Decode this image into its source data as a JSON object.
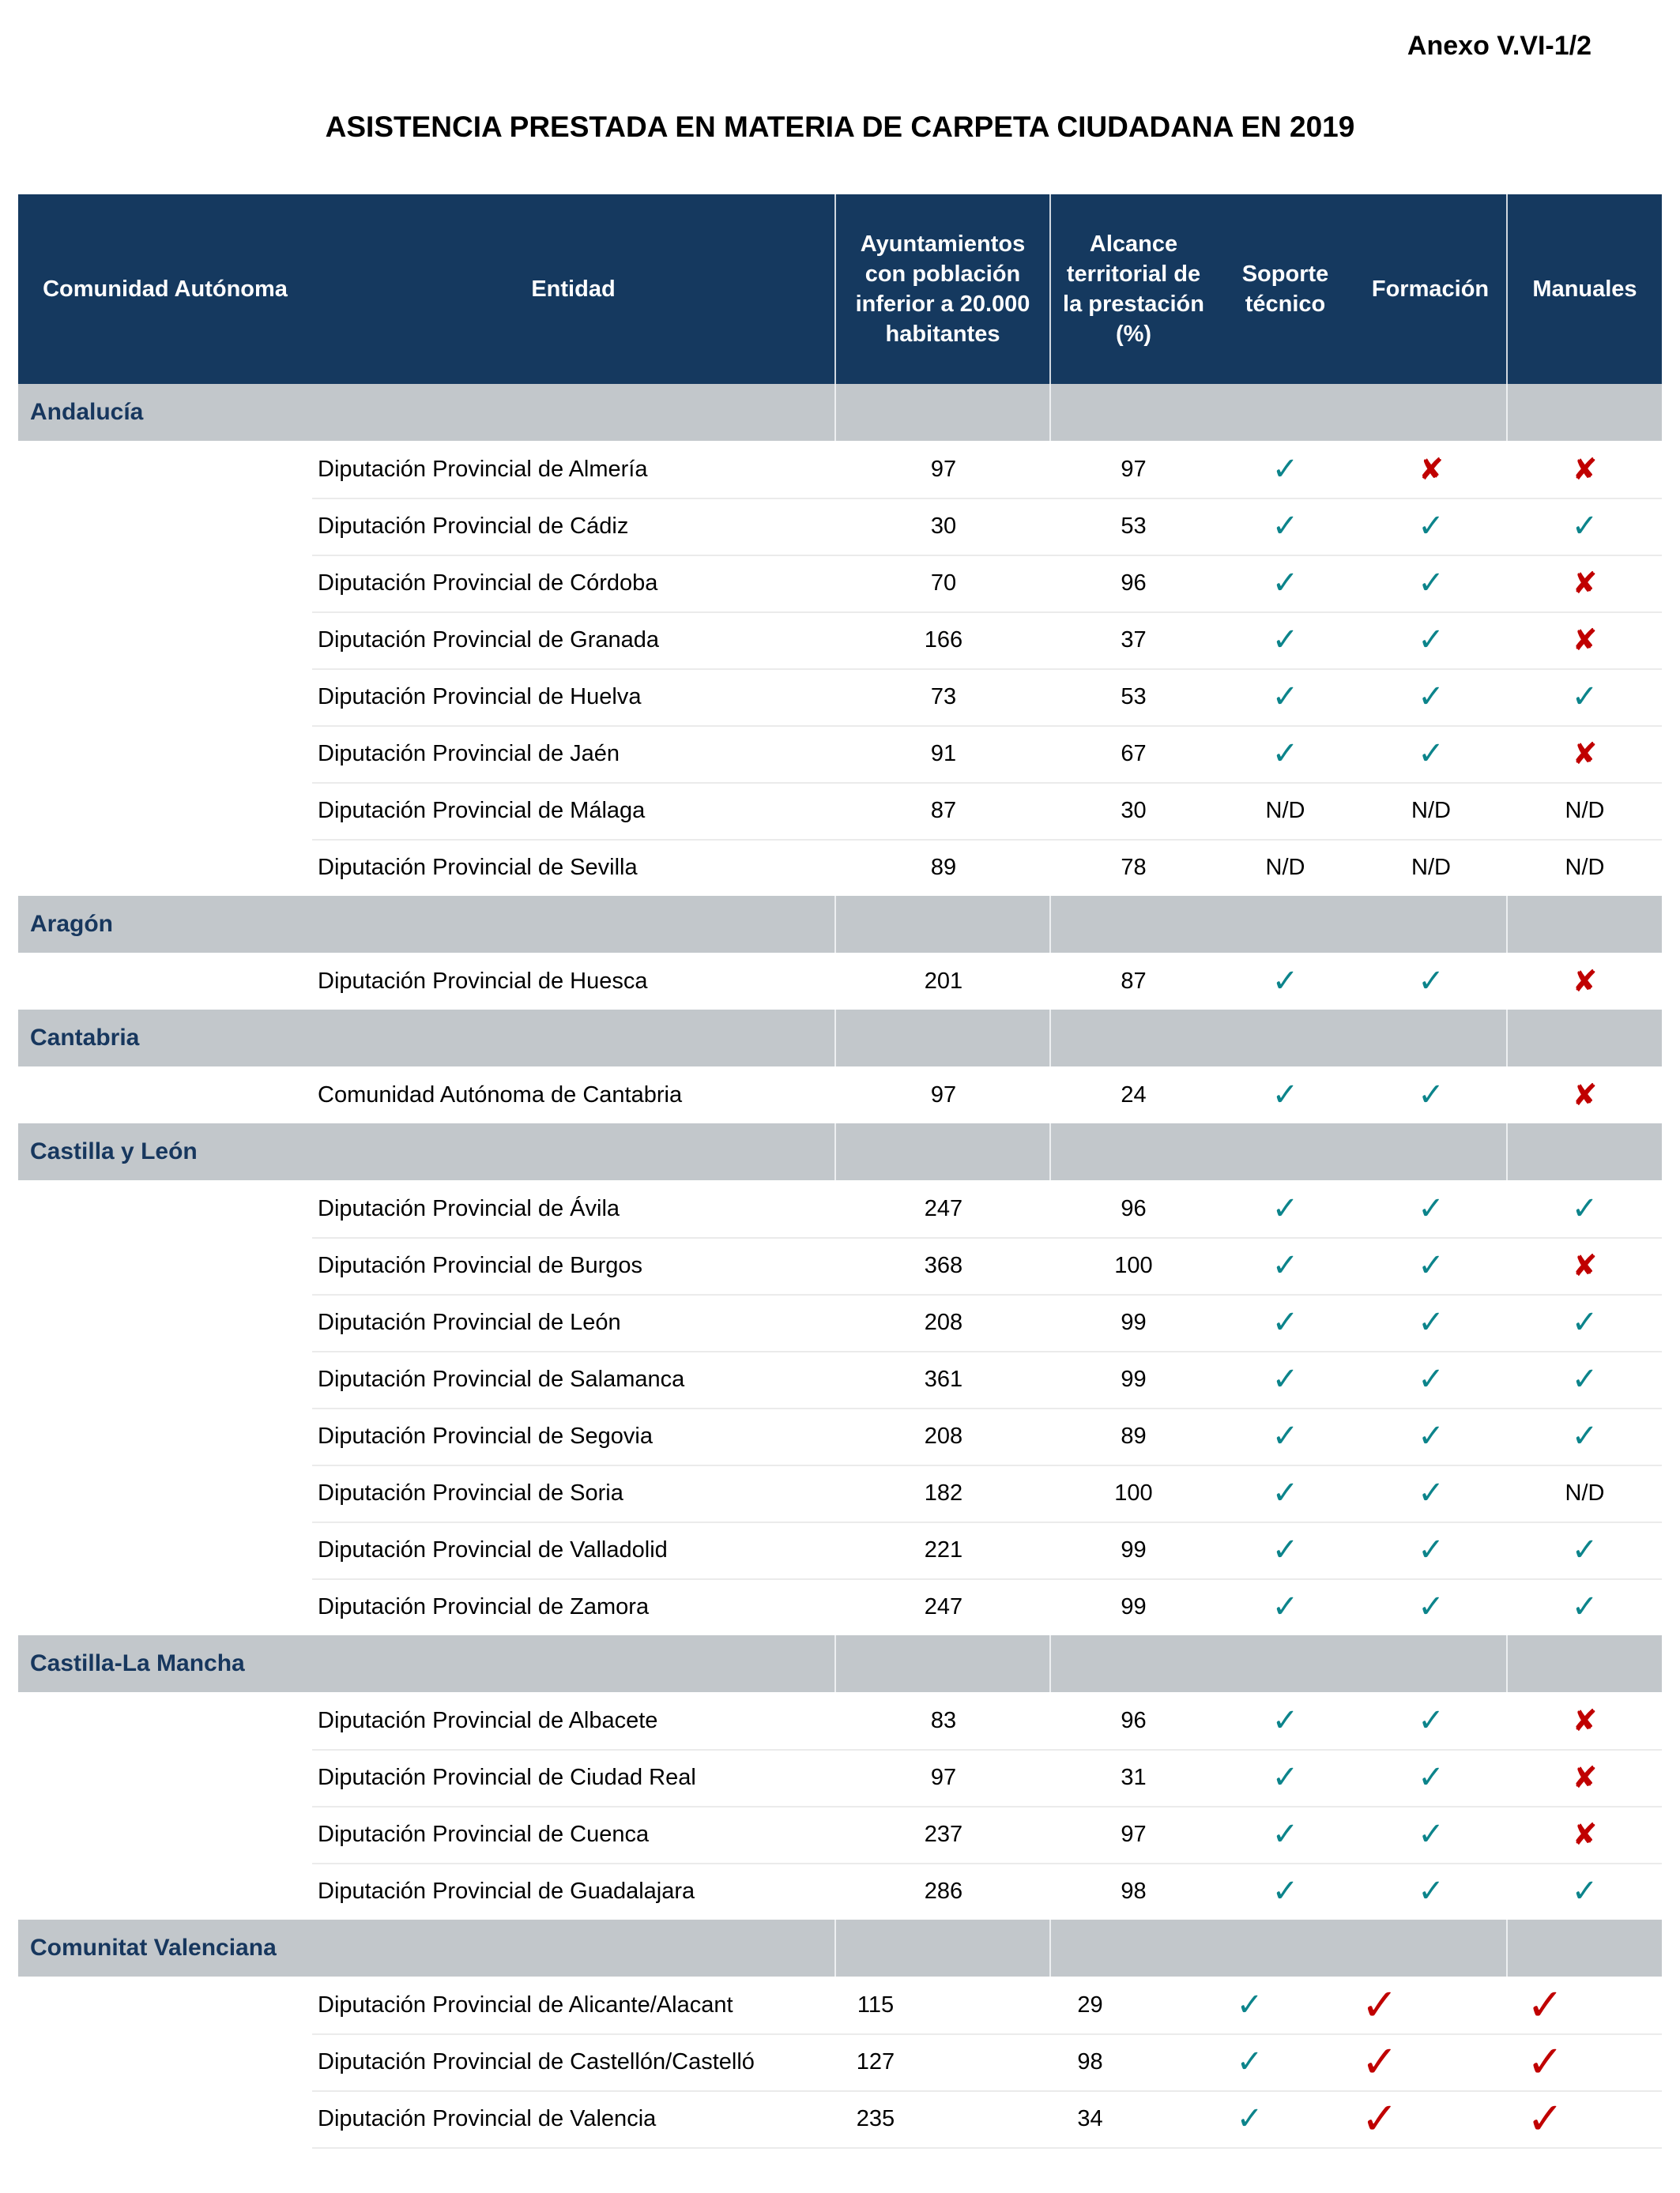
{
  "page": {
    "annex_label": "Anexo V.VI-1/2",
    "title": "ASISTENCIA PRESTADA EN MATERIA DE CARPETA CIUDADANA EN 2019"
  },
  "colors": {
    "header_bg": "#15395F",
    "header_text": "#FFFFFF",
    "band_bg": "#C2C7CB",
    "band_text": "#17375E",
    "check": "#0C848B",
    "cross": "#C00000"
  },
  "table": {
    "columns": [
      "Comunidad Autónoma",
      "Entidad",
      "Ayuntamientos con población inferior a 20.000 habitantes",
      "Alcance territorial de la prestación (%)",
      "Soporte técnico",
      "Formación",
      "Manuales"
    ],
    "icons": {
      "check": "✓",
      "cross": "✘",
      "check_red": "✓",
      "nd": "N/D"
    },
    "groups": [
      {
        "region": "Andalucía",
        "rows": [
          {
            "entity": "Diputación Provincial de Almería",
            "ayuntamientos": "97",
            "alcance": "97",
            "statuses": [
              "check",
              "cross",
              "cross"
            ]
          },
          {
            "entity": "Diputación Provincial de Cádiz",
            "ayuntamientos": "30",
            "alcance": "53",
            "statuses": [
              "check",
              "check",
              "check"
            ]
          },
          {
            "entity": "Diputación Provincial de Córdoba",
            "ayuntamientos": "70",
            "alcance": "96",
            "statuses": [
              "check",
              "check",
              "cross"
            ]
          },
          {
            "entity": "Diputación Provincial de Granada",
            "ayuntamientos": "166",
            "alcance": "37",
            "statuses": [
              "check",
              "check",
              "cross"
            ]
          },
          {
            "entity": "Diputación Provincial de Huelva",
            "ayuntamientos": "73",
            "alcance": "53",
            "statuses": [
              "check",
              "check",
              "check"
            ]
          },
          {
            "entity": "Diputación Provincial de Jaén",
            "ayuntamientos": "91",
            "alcance": "67",
            "statuses": [
              "check",
              "check",
              "cross"
            ]
          },
          {
            "entity": "Diputación Provincial de Málaga",
            "ayuntamientos": "87",
            "alcance": "30",
            "statuses": [
              "nd",
              "nd",
              "nd"
            ]
          },
          {
            "entity": "Diputación Provincial de Sevilla",
            "ayuntamientos": "89",
            "alcance": "78",
            "statuses": [
              "nd",
              "nd",
              "nd"
            ]
          }
        ]
      },
      {
        "region": "Aragón",
        "rows": [
          {
            "entity": "Diputación Provincial de Huesca",
            "ayuntamientos": "201",
            "alcance": "87",
            "statuses": [
              "check",
              "check",
              "cross"
            ]
          }
        ]
      },
      {
        "region": "Cantabria",
        "rows": [
          {
            "entity": "Comunidad Autónoma de Cantabria",
            "ayuntamientos": "97",
            "alcance": "24",
            "statuses": [
              "check",
              "check",
              "cross"
            ]
          }
        ]
      },
      {
        "region": "Castilla y León",
        "rows": [
          {
            "entity": "Diputación Provincial de Ávila",
            "ayuntamientos": "247",
            "alcance": "96",
            "statuses": [
              "check",
              "check",
              "check"
            ]
          },
          {
            "entity": "Diputación Provincial de Burgos",
            "ayuntamientos": "368",
            "alcance": "100",
            "statuses": [
              "check",
              "check",
              "cross"
            ]
          },
          {
            "entity": "Diputación Provincial de León",
            "ayuntamientos": "208",
            "alcance": "99",
            "statuses": [
              "check",
              "check",
              "check"
            ]
          },
          {
            "entity": "Diputación Provincial de Salamanca",
            "ayuntamientos": "361",
            "alcance": "99",
            "statuses": [
              "check",
              "check",
              "check"
            ]
          },
          {
            "entity": "Diputación Provincial de Segovia",
            "ayuntamientos": "208",
            "alcance": "89",
            "statuses": [
              "check",
              "check",
              "check"
            ]
          },
          {
            "entity": "Diputación Provincial de Soria",
            "ayuntamientos": "182",
            "alcance": "100",
            "statuses": [
              "check",
              "check",
              "nd"
            ]
          },
          {
            "entity": "Diputación Provincial de Valladolid",
            "ayuntamientos": "221",
            "alcance": "99",
            "statuses": [
              "check",
              "check",
              "check"
            ]
          },
          {
            "entity": "Diputación Provincial de Zamora",
            "ayuntamientos": "247",
            "alcance": "99",
            "statuses": [
              "check",
              "check",
              "check"
            ]
          }
        ]
      },
      {
        "region": "Castilla-La Mancha",
        "rows": [
          {
            "entity": "Diputación Provincial de Albacete",
            "ayuntamientos": "83",
            "alcance": "96",
            "statuses": [
              "check",
              "check",
              "cross"
            ]
          },
          {
            "entity": "Diputación Provincial de Ciudad Real",
            "ayuntamientos": "97",
            "alcance": "31",
            "statuses": [
              "check",
              "check",
              "cross"
            ]
          },
          {
            "entity": "Diputación Provincial de Cuenca",
            "ayuntamientos": "237",
            "alcance": "97",
            "statuses": [
              "check",
              "check",
              "cross"
            ]
          },
          {
            "entity": "Diputación Provincial de Guadalajara",
            "ayuntamientos": "286",
            "alcance": "98",
            "statuses": [
              "check",
              "check",
              "check"
            ]
          }
        ]
      },
      {
        "region": "Comunitat Valenciana",
        "variant": true,
        "rows": [
          {
            "entity": "Diputación Provincial de Alicante/Alacant",
            "ayuntamientos": "115",
            "alcance": "29",
            "statuses": [
              "check",
              "check_red",
              "check_red"
            ]
          },
          {
            "entity": "Diputación Provincial de Castellón/Castelló",
            "ayuntamientos": "127",
            "alcance": "98",
            "statuses": [
              "check",
              "check_red",
              "check_red"
            ]
          },
          {
            "entity": "Diputación Provincial de Valencia",
            "ayuntamientos": "235",
            "alcance": "34",
            "statuses": [
              "check",
              "check_red",
              "check_red"
            ]
          }
        ]
      }
    ]
  }
}
